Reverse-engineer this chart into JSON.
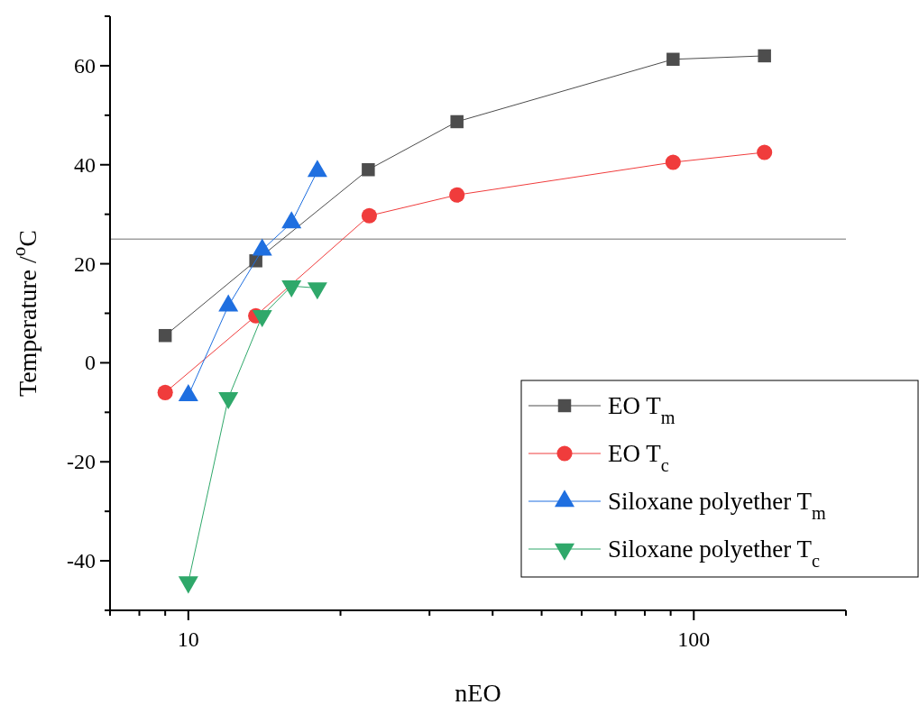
{
  "chart_data": {
    "type": "line",
    "xlabel": "nEO",
    "ylabel": "Temperature /$^{o}$C",
    "log": "x",
    "xlim": [
      7,
      200
    ],
    "xticks": [
      {
        "value": 7,
        "label": null
      },
      {
        "value": 8,
        "label": null
      },
      {
        "value": 9,
        "label": null
      },
      10,
      {
        "value": 20,
        "label": null
      },
      {
        "value": 30,
        "label": null
      },
      {
        "value": 40,
        "label": null
      },
      {
        "value": 50,
        "label": null
      },
      {
        "value": 60,
        "label": null
      },
      {
        "value": 70,
        "label": null
      },
      {
        "value": 80,
        "label": null
      },
      {
        "value": 90,
        "label": null
      },
      100,
      {
        "value": 200,
        "label": null
      }
    ],
    "ylim": [
      -50,
      70
    ],
    "yticks": [
      {
        "value": -50,
        "label": null
      },
      -40,
      {
        "value": -30,
        "label": null
      },
      -20,
      {
        "value": -10,
        "label": null
      },
      0,
      {
        "value": 10,
        "label": null
      },
      20,
      {
        "value": 30,
        "label": null
      },
      40,
      {
        "value": 50,
        "label": null
      },
      60,
      {
        "value": 70,
        "label": null
      }
    ],
    "ref_lines": [
      {
        "axis": "y",
        "value": 25,
        "color": "#a0a0a0"
      }
    ],
    "legend": "bottom right",
    "series": [
      {
        "name": "EO T$_{m}$",
        "color": "#4d4d4d",
        "marker": "square",
        "x": [
          9,
          13.6,
          22.7,
          34,
          91,
          138
        ],
        "values": [
          5.5,
          20.6,
          39,
          48.7,
          61.3,
          62
        ]
      },
      {
        "name": "EO T$_{c}$",
        "color": "#f03c3c",
        "marker": "circle",
        "x": [
          9,
          13.6,
          22.8,
          34,
          91,
          138
        ],
        "values": [
          -6,
          9.5,
          29.7,
          33.9,
          40.5,
          42.5
        ]
      },
      {
        "name": "Siloxane polyether T$_{m}$",
        "color": "#1f6fe0",
        "marker": "triangle",
        "x": [
          10,
          12,
          14,
          16,
          18
        ],
        "values": [
          -6.6,
          11.5,
          22.8,
          28.3,
          38.7
        ]
      },
      {
        "name": "Siloxane polyether T$_{c}$",
        "color": "#2fa86a",
        "marker": "triangle-down",
        "x": [
          10,
          12,
          14,
          16,
          18
        ],
        "values": [
          -44.3,
          -7.1,
          9.5,
          15.5,
          15.1
        ]
      }
    ]
  }
}
